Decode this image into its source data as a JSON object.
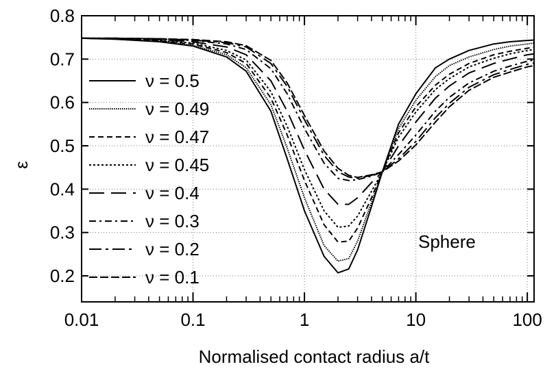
{
  "chart_data": {
    "type": "line",
    "xlabel": "Normalised contact radius a/t",
    "ylabel": "ε",
    "xscale": "log",
    "xlim": [
      0.01,
      115
    ],
    "ylim": [
      0.14,
      0.8
    ],
    "grid": true,
    "legend_placement": "left",
    "x_ticks": [
      "0.01",
      "0.1",
      "1",
      "10",
      "100"
    ],
    "y_ticks": [
      "0.2",
      "0.3",
      "0.4",
      "0.5",
      "0.6",
      "0.7",
      "0.8"
    ],
    "annotations": [
      {
        "text": "Sphere"
      }
    ],
    "x": [
      0.01,
      0.02,
      0.05,
      0.1,
      0.2,
      0.3,
      0.5,
      0.7,
      1,
      1.5,
      2,
      2.5,
      3,
      4,
      5,
      7,
      10,
      15,
      20,
      30,
      50,
      70,
      100,
      115
    ],
    "series": [
      {
        "name": "ν = 0.5",
        "dash": "solid",
        "values": [
          0.748,
          0.746,
          0.74,
          0.73,
          0.705,
          0.672,
          0.58,
          0.47,
          0.35,
          0.245,
          0.207,
          0.216,
          0.26,
          0.36,
          0.44,
          0.55,
          0.62,
          0.68,
          0.7,
          0.72,
          0.735,
          0.74,
          0.743,
          0.744
        ]
      },
      {
        "name": "ν = 0.49",
        "dash": "dotted-dense",
        "values": [
          0.748,
          0.746,
          0.741,
          0.732,
          0.71,
          0.68,
          0.595,
          0.495,
          0.38,
          0.27,
          0.234,
          0.24,
          0.28,
          0.37,
          0.44,
          0.54,
          0.605,
          0.66,
          0.685,
          0.705,
          0.722,
          0.73,
          0.735,
          0.737
        ]
      },
      {
        "name": "ν = 0.47",
        "dash": "short-dash",
        "values": [
          0.748,
          0.747,
          0.742,
          0.735,
          0.715,
          0.69,
          0.61,
          0.525,
          0.42,
          0.318,
          0.278,
          0.28,
          0.31,
          0.38,
          0.44,
          0.53,
          0.59,
          0.64,
          0.665,
          0.69,
          0.71,
          0.718,
          0.725,
          0.727
        ]
      },
      {
        "name": "ν = 0.45",
        "dash": "dotted",
        "values": [
          0.748,
          0.747,
          0.743,
          0.737,
          0.72,
          0.698,
          0.625,
          0.545,
          0.445,
          0.35,
          0.312,
          0.315,
          0.338,
          0.395,
          0.44,
          0.52,
          0.578,
          0.63,
          0.655,
          0.682,
          0.702,
          0.712,
          0.72,
          0.722
        ]
      },
      {
        "name": "ν = 0.4",
        "dash": "long-dash",
        "values": [
          0.748,
          0.748,
          0.745,
          0.74,
          0.728,
          0.71,
          0.65,
          0.58,
          0.49,
          0.4,
          0.365,
          0.365,
          0.38,
          0.415,
          0.44,
          0.5,
          0.555,
          0.61,
          0.638,
          0.668,
          0.69,
          0.7,
          0.71,
          0.712
        ]
      },
      {
        "name": "ν = 0.3",
        "dash": "dash-dot",
        "values": [
          0.748,
          0.748,
          0.746,
          0.743,
          0.735,
          0.722,
          0.678,
          0.62,
          0.54,
          0.46,
          0.425,
          0.42,
          0.422,
          0.43,
          0.44,
          0.48,
          0.525,
          0.58,
          0.612,
          0.645,
          0.672,
          0.684,
          0.695,
          0.698
        ]
      },
      {
        "name": "ν = 0.2",
        "dash": "long-dash-dot",
        "values": [
          0.748,
          0.748,
          0.747,
          0.744,
          0.738,
          0.728,
          0.69,
          0.637,
          0.56,
          0.478,
          0.44,
          0.428,
          0.425,
          0.432,
          0.44,
          0.47,
          0.51,
          0.565,
          0.598,
          0.635,
          0.664,
          0.676,
          0.688,
          0.691
        ]
      },
      {
        "name": "ν = 0.1",
        "dash": "dash-dense",
        "values": [
          0.748,
          0.748,
          0.747,
          0.745,
          0.74,
          0.731,
          0.697,
          0.645,
          0.57,
          0.488,
          0.448,
          0.432,
          0.427,
          0.433,
          0.44,
          0.465,
          0.502,
          0.555,
          0.59,
          0.628,
          0.658,
          0.67,
          0.682,
          0.685
        ]
      }
    ]
  }
}
